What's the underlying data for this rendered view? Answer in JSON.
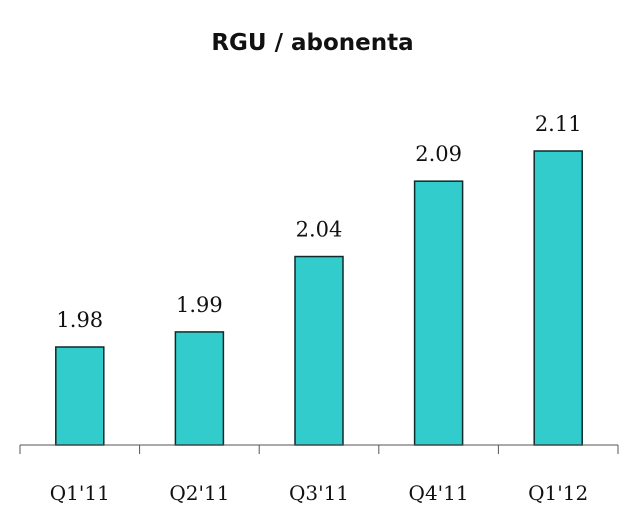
{
  "chart_data": {
    "type": "bar",
    "title": "RGU / abonenta",
    "xlabel": "",
    "ylabel": "",
    "categories": [
      "Q1'11",
      "Q2'11",
      "Q3'11",
      "Q4'11",
      "Q1'12"
    ],
    "values": [
      1.98,
      1.99,
      2.04,
      2.09,
      2.11
    ],
    "value_labels": [
      "1.98",
      "1.99",
      "2.04",
      "2.09",
      "2.11"
    ],
    "ylim": [
      1.915,
      2.11
    ],
    "grid": false,
    "legend": "none",
    "colors": {
      "bar_fill": "#33cccc",
      "bar_stroke": "#0f2a2a"
    }
  }
}
